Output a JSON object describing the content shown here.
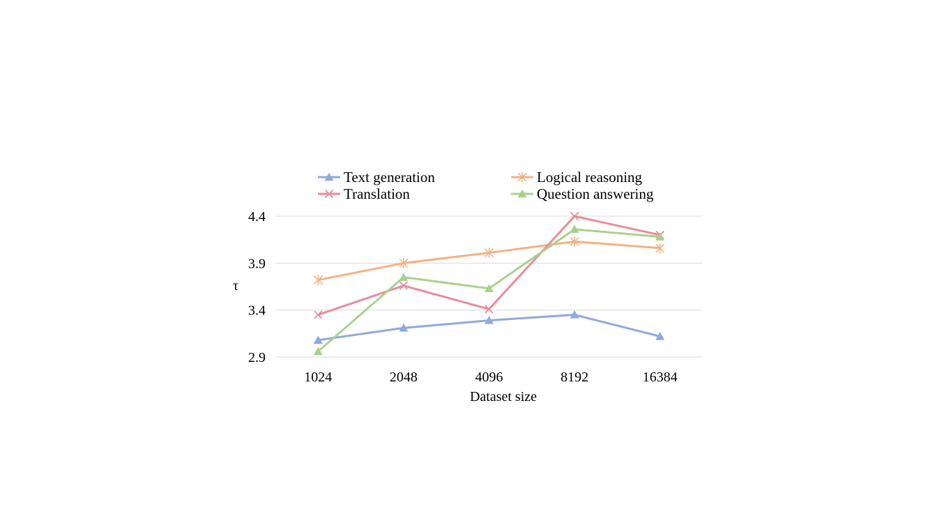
{
  "chart_data": {
    "type": "line",
    "title": "",
    "xlabel": "Dataset size",
    "ylabel": "τ",
    "categories": [
      "1024",
      "2048",
      "4096",
      "8192",
      "16384"
    ],
    "ylim": [
      2.9,
      4.4
    ],
    "yticks": [
      "2.9",
      "3.4",
      "3.9",
      "4.4"
    ],
    "grid": true,
    "legend_position": "top",
    "series": [
      {
        "name": "Text generation",
        "values": [
          3.08,
          3.21,
          3.29,
          3.35,
          3.12
        ],
        "color": "#8faadc",
        "marker": "triangle"
      },
      {
        "name": "Logical reasoning",
        "values": [
          3.72,
          3.9,
          4.01,
          4.13,
          4.06
        ],
        "color": "#f4b183",
        "marker": "asterisk"
      },
      {
        "name": "Translation",
        "values": [
          3.35,
          3.66,
          3.41,
          4.4,
          4.2
        ],
        "color": "#ea8c9b",
        "marker": "x"
      },
      {
        "name": "Question answering",
        "values": [
          2.96,
          3.75,
          3.63,
          4.26,
          4.18
        ],
        "color": "#a9d18e",
        "marker": "triangle"
      }
    ]
  }
}
